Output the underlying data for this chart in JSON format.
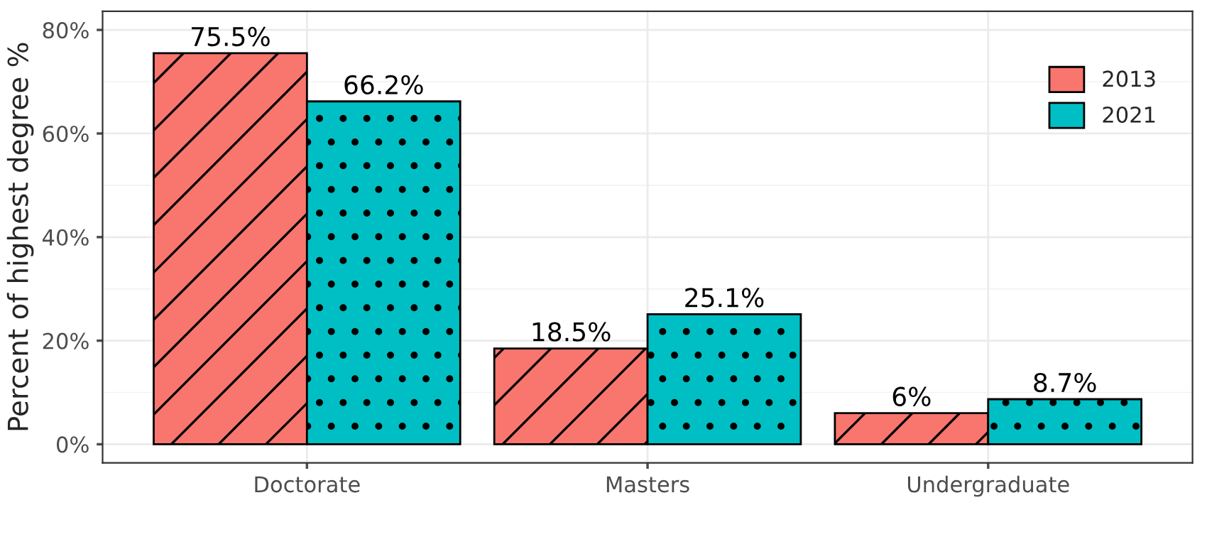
{
  "chart_data": {
    "type": "bar",
    "ylabel": "Percent of highest degree %",
    "categories": [
      "Doctorate",
      "Masters",
      "Undergraduate"
    ],
    "series": [
      {
        "name": "2013",
        "color": "#f8766d",
        "values": [
          75.5,
          18.5,
          6
        ],
        "value_labels": [
          "75.5%",
          "18.5%",
          "6%"
        ]
      },
      {
        "name": "2021",
        "color": "#00bfc4",
        "values": [
          66.2,
          25.1,
          8.7
        ],
        "value_labels": [
          "66.2%",
          "25.1%",
          "8.7%"
        ]
      }
    ],
    "ylim": [
      -3.6,
      83.6
    ],
    "yticks": [
      {
        "value": 0,
        "label": "0%"
      },
      {
        "value": 20,
        "label": "20%"
      },
      {
        "value": 40,
        "label": "40%"
      },
      {
        "value": 60,
        "label": "60%"
      },
      {
        "value": 80,
        "label": "80%"
      }
    ],
    "grid": true,
    "legend": "top right"
  }
}
